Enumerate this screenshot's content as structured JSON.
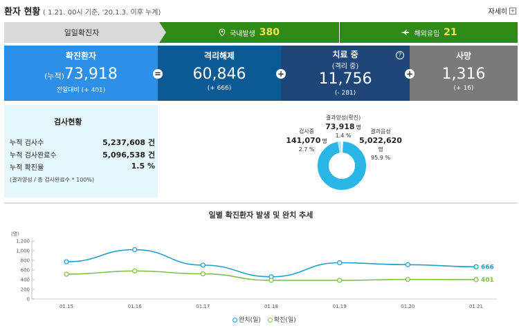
{
  "header": {
    "title": "환자 현황",
    "subtitle": "( 1.21. 00시 기준, '20.1.3. 이후 누계)",
    "detail_label": "자세히"
  },
  "daily": {
    "label": "일일확진자",
    "domestic_label": "국내발생",
    "domestic_value": "380",
    "overseas_label": "해외유입",
    "overseas_value": "21"
  },
  "stats": {
    "confirmed": {
      "label": "확진환자",
      "prefix": "(누적)",
      "value": "73,918",
      "sub": "전일대비 (+ 401)"
    },
    "released": {
      "label": "격리해제",
      "value": "60,846",
      "sub": "(+ 666)"
    },
    "treatment": {
      "label": "치료 중",
      "label2": "(격리 중)",
      "value": "11,756",
      "sub": "(- 281)"
    },
    "death": {
      "label": "사망",
      "value": "1,316",
      "sub": "(+ 16)"
    },
    "ops": [
      "=",
      "+",
      "+"
    ]
  },
  "tests": {
    "title": "검사현황",
    "rows": [
      {
        "label": "누적 검사수",
        "value": "5,237,608 건"
      },
      {
        "label": "누적 검사완료수",
        "value": "5,096,538 건"
      },
      {
        "label": "누적 확진율",
        "value": "1.5 %"
      }
    ],
    "note": "(결과양성 / 총 검사완료수 * 100%)",
    "donut": {
      "positive_label": "결과양성(확진)",
      "positive_value": "73,918",
      "positive_pct": "1.4 %",
      "testing_label": "검사중",
      "testing_value": "141,070",
      "testing_pct": "2.7 %",
      "negative_label": "결과음성",
      "negative_value": "5,022,620",
      "negative_pct": "95.9 %",
      "unit": "명",
      "colors": {
        "negative": "#29b6e6",
        "testing": "#b8e6f5",
        "positive": "#ffffff"
      }
    }
  },
  "chart_data": {
    "type": "line",
    "title": "일별 확진환자 발생 및 완치 추세",
    "ylabel": "(명)",
    "ylim": [
      0,
      1200
    ],
    "yticks": [
      "0",
      "200",
      "400",
      "600",
      "800",
      "1,000",
      "1,200"
    ],
    "categories": [
      "01.15",
      "01.16",
      "01.17",
      "01.18",
      "01.19",
      "01.20",
      "01.21"
    ],
    "series": [
      {
        "name": "완치(일)",
        "color": "#1f9fc9",
        "values": [
          770,
          1020,
          700,
          460,
          750,
          710,
          666
        ]
      },
      {
        "name": "확진(일)",
        "color": "#7cc243",
        "values": [
          513,
          580,
          520,
          386,
          386,
          404,
          401
        ]
      }
    ],
    "end_labels": [
      "666",
      "401"
    ]
  }
}
